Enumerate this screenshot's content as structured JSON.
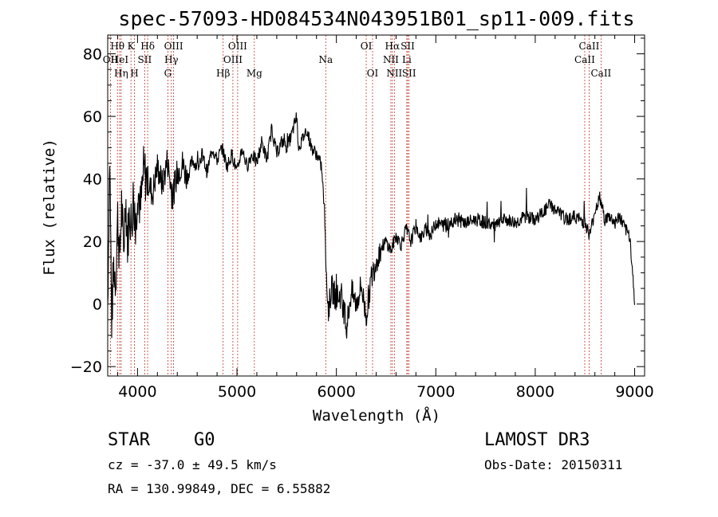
{
  "chart_data": {
    "type": "line",
    "title": "spec-57093-HD084534N043951B01_sp11-009.fits",
    "xlabel": "Wavelength (Å)",
    "ylabel": "Flux (relative)",
    "xlim": [
      3700,
      9100
    ],
    "ylim": [
      -23,
      86
    ],
    "xticks": [
      4000,
      5000,
      6000,
      7000,
      8000,
      9000
    ],
    "yticks": [
      -20,
      0,
      20,
      40,
      60,
      80
    ],
    "grid": false,
    "series": [
      {
        "values_x": [
          3700,
          3720,
          3740,
          3760,
          3780,
          3800,
          3820,
          3840,
          3860,
          3880,
          3900,
          3920,
          3940,
          3960,
          3980,
          4000,
          4030,
          4060,
          4100,
          4150,
          4200,
          4250,
          4300,
          4350,
          4400,
          4450,
          4500,
          4550,
          4600,
          4650,
          4700,
          4750,
          4800,
          4850,
          4900,
          4950,
          5000,
          5050,
          5100,
          5150,
          5200,
          5250,
          5300,
          5350,
          5400,
          5450,
          5500,
          5550,
          5600,
          5620,
          5650,
          5700,
          5750,
          5800,
          5850,
          5880,
          5900,
          5920,
          5950,
          6000,
          6050,
          6100,
          6150,
          6200,
          6250,
          6300,
          6350,
          6400,
          6450,
          6500,
          6550,
          6600,
          6650,
          6700,
          6750,
          6800,
          6850,
          6900,
          6950,
          7000,
          7100,
          7200,
          7300,
          7400,
          7500,
          7600,
          7700,
          7800,
          7900,
          8000,
          8100,
          8150,
          8200,
          8250,
          8300,
          8400,
          8500,
          8550,
          8600,
          8650,
          8700,
          8750,
          8800,
          8850,
          8900,
          8950,
          8980,
          9000
        ],
        "values_y": [
          0,
          48,
          -5,
          12,
          8,
          28,
          14,
          32,
          16,
          35,
          20,
          30,
          25,
          36,
          22,
          38,
          30,
          42,
          40,
          35,
          44,
          38,
          46,
          34,
          42,
          45,
          40,
          46,
          44,
          48,
          42,
          50,
          46,
          50,
          44,
          48,
          42,
          50,
          44,
          48,
          45,
          52,
          46,
          56,
          48,
          52,
          50,
          54,
          60,
          50,
          52,
          56,
          50,
          48,
          44,
          30,
          8,
          -2,
          5,
          2,
          3,
          -8,
          4,
          0,
          6,
          -4,
          8,
          14,
          18,
          20,
          17,
          22,
          19,
          24,
          20,
          25,
          21,
          24,
          22,
          26,
          25,
          27,
          26,
          27,
          26,
          25,
          27,
          26,
          28,
          27,
          30,
          32,
          30,
          29,
          27,
          28,
          26,
          22,
          30,
          34,
          27,
          28,
          26,
          28,
          24,
          22,
          10,
          0
        ]
      }
    ],
    "spectral_lines": [
      {
        "label": "Hθ",
        "x": 3798,
        "row": 0
      },
      {
        "label": "OII",
        "x": 3727,
        "row": 1
      },
      {
        "label": "HeI",
        "x": 3820,
        "row": 1
      },
      {
        "label": "Hη",
        "x": 3835,
        "row": 2
      },
      {
        "label": "K",
        "x": 3934,
        "row": 0
      },
      {
        "label": "H",
        "x": 3969,
        "row": 2
      },
      {
        "label": "SII",
        "x": 4072,
        "row": 1
      },
      {
        "label": "Hδ",
        "x": 4102,
        "row": 0
      },
      {
        "label": "OIII",
        "x": 4363,
        "row": 0
      },
      {
        "label": "Hγ",
        "x": 4340,
        "row": 1
      },
      {
        "label": "G",
        "x": 4305,
        "row": 2
      },
      {
        "label": "OIII",
        "x": 5007,
        "row": 0
      },
      {
        "label": "OIII",
        "x": 4959,
        "row": 1
      },
      {
        "label": "Hβ",
        "x": 4861,
        "row": 2
      },
      {
        "label": "Mg",
        "x": 5175,
        "row": 2
      },
      {
        "label": "Na",
        "x": 5893,
        "row": 1
      },
      {
        "label": "OI",
        "x": 6300,
        "row": 0
      },
      {
        "label": "OI",
        "x": 6364,
        "row": 2
      },
      {
        "label": "Hα",
        "x": 6563,
        "row": 0
      },
      {
        "label": "NII",
        "x": 6548,
        "row": 1
      },
      {
        "label": "NII",
        "x": 6583,
        "row": 2
      },
      {
        "label": "SII",
        "x": 6717,
        "row": 0
      },
      {
        "label": "Li",
        "x": 6708,
        "row": 1
      },
      {
        "label": "SII",
        "x": 6731,
        "row": 2
      },
      {
        "label": "CaII",
        "x": 8542,
        "row": 0
      },
      {
        "label": "CaII",
        "x": 8498,
        "row": 1
      },
      {
        "label": "CaII",
        "x": 8662,
        "row": 2
      }
    ]
  },
  "info": {
    "class": "STAR",
    "subclass": "G0",
    "survey": "LAMOST DR3",
    "cz": "cz = -37.0 ± 49.5 km/s",
    "obs_date": "Obs-Date: 20150311",
    "coords": "RA = 130.99849, DEC =   6.55882"
  }
}
